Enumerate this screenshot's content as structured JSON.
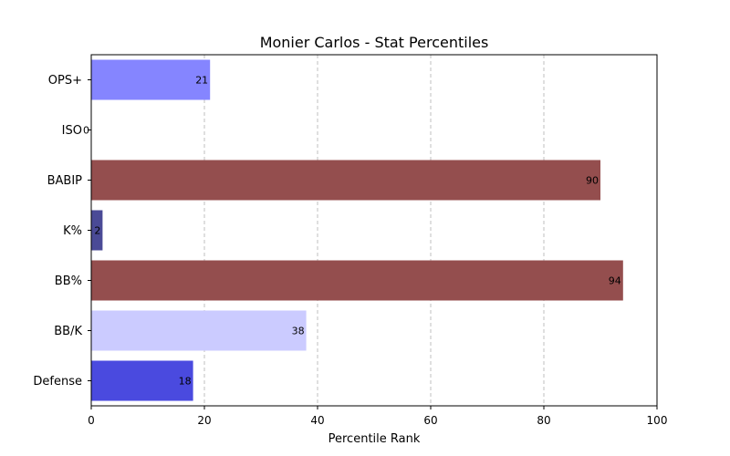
{
  "chart_data": {
    "type": "bar",
    "orientation": "horizontal",
    "title": "Monier Carlos - Stat Percentiles",
    "xlabel": "Percentile Rank",
    "ylabel": "",
    "xlim": [
      0,
      100
    ],
    "xticks": [
      0,
      20,
      40,
      60,
      80,
      100
    ],
    "grid": "x-dashed",
    "categories": [
      "OPS+",
      "ISO",
      "BABIP",
      "K%",
      "BB%",
      "BB/K",
      "Defense"
    ],
    "values": [
      21,
      0,
      90,
      2,
      94,
      38,
      18
    ],
    "colors": [
      "#8585ff",
      "#d0d0ff",
      "#944e4e",
      "#4a4a96",
      "#944e4e",
      "#cbcbff",
      "#4a4adf"
    ]
  }
}
